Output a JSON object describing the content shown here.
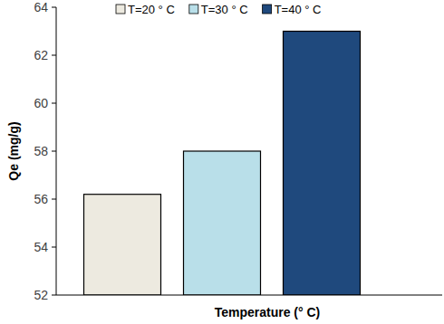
{
  "chart_data": {
    "type": "bar",
    "categories": [
      null
    ],
    "series": [
      {
        "name": "T=20 ° C",
        "color": "#edeae0",
        "values": [
          56.2
        ]
      },
      {
        "name": "T=30 ° C",
        "color": "#b9dfe9",
        "values": [
          58.0
        ]
      },
      {
        "name": "T=40 ° C",
        "color": "#1f497d",
        "values": [
          63.0
        ]
      }
    ],
    "x_label": "Temperature (° C)",
    "y_label": "Qe (mg/g)",
    "ylim": [
      52,
      64
    ],
    "yticks": [
      52,
      54,
      56,
      58,
      60,
      62,
      64
    ],
    "grid": false,
    "legend": "top"
  }
}
